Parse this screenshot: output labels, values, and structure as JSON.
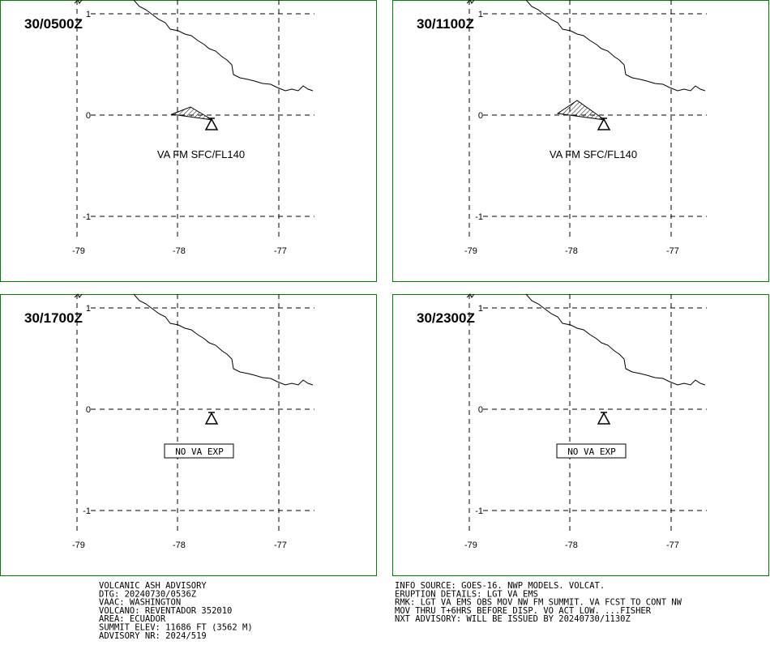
{
  "panels": [
    {
      "time": "30/0500Z",
      "annotation": "VA FM SFC/FL140",
      "ash": "small"
    },
    {
      "time": "30/1100Z",
      "annotation": "VA FM SFC/FL140",
      "ash": "large"
    },
    {
      "time": "30/1700Z",
      "annotation": "NO VA EXP",
      "ash": "none"
    },
    {
      "time": "30/2300Z",
      "annotation": "NO VA EXP",
      "ash": "none"
    }
  ],
  "lat_labels": [
    "1",
    "0",
    "-1"
  ],
  "lon_labels": [
    "-79",
    "-78",
    "-77"
  ],
  "advisory_left": [
    "VOLCANIC ASH ADVISORY",
    "DTG: 20240730/0536Z",
    "VAAC: WASHINGTON",
    "VOLCANO: REVENTADOR 352010",
    "AREA: ECUADOR",
    "SUMMIT ELEV: 11686 FT (3562 M)",
    "ADVISORY NR: 2024/519"
  ],
  "advisory_right": [
    "INFO SOURCE: GOES-16. NWP MODELS. VOLCAT.",
    "ERUPTION DETAILS: LGT VA EMS",
    "RMK: LGT VA EMS OBS MOV NW FM SUMMIT. VA FCST TO CONT NW",
    "MOV THRU T+6HRS BEFORE DISP. VO ACT LOW. ...FISHER",
    "NXT ADVISORY: WILL BE ISSUED BY 20240730/1130Z"
  ]
}
